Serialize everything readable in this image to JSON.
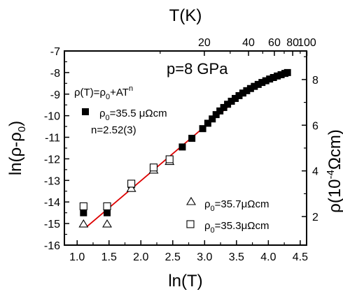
{
  "chart_data": {
    "type": "scatter",
    "title": "",
    "xlabel": "ln(T)",
    "ylabel_left": "ln(ρ-ρ0)",
    "ylabel_right": "ρ(10^-4 Ωcm)",
    "xlabel_top": "T(K)",
    "xlim": [
      0.8,
      4.6
    ],
    "ylim": [
      -16,
      -7
    ],
    "x_ticks": [
      "1.0",
      "1.5",
      "2.0",
      "2.5",
      "3.0",
      "3.5",
      "4.0",
      "4.5"
    ],
    "y_ticks": [
      "-7",
      "-8",
      "-9",
      "-10",
      "-11",
      "-12",
      "-13",
      "-14",
      "-15",
      "-16"
    ],
    "top_ticks": [
      "20",
      "40",
      "60",
      "80",
      "100"
    ],
    "top_tick_values": [
      20,
      40,
      60,
      80,
      100
    ],
    "right_ticks": [
      "2",
      "4",
      "6",
      "8"
    ],
    "right_tick_values": [
      2,
      4,
      6,
      8
    ],
    "right_ylim": [
      0.75,
      9.25
    ],
    "annotations": {
      "pressure": "p=8 GPa",
      "formula": "ρ(T)=ρ0+AT^n",
      "rho0_main": "ρ0=35.5 μΩcm",
      "n_value": "n=2.52(3)",
      "rho0_triangle": "ρ0=35.7μΩcm",
      "rho0_square": "ρ0=35.3μΩcm"
    },
    "series": [
      {
        "name": "ρ0=35.5 μΩcm",
        "marker": "filled-square",
        "color": "#000000",
        "x": [
          1.1,
          1.47,
          1.85,
          2.2,
          2.45,
          2.65,
          2.8,
          2.97,
          3.05,
          3.12,
          3.18,
          3.24,
          3.3,
          3.36,
          3.42,
          3.48,
          3.54,
          3.6,
          3.66,
          3.72,
          3.78,
          3.84,
          3.9,
          3.96,
          4.02,
          4.08,
          4.14,
          4.2,
          4.26,
          4.3
        ],
        "y": [
          -14.5,
          -14.5,
          -13.2,
          -12.45,
          -12.05,
          -11.45,
          -11.05,
          -10.6,
          -10.35,
          -10.15,
          -9.95,
          -9.78,
          -9.62,
          -9.47,
          -9.33,
          -9.2,
          -9.07,
          -8.95,
          -8.84,
          -8.74,
          -8.64,
          -8.55,
          -8.46,
          -8.38,
          -8.3,
          -8.23,
          -8.16,
          -8.1,
          -8.04,
          -8.0
        ]
      },
      {
        "name": "ρ0=35.7μΩcm",
        "marker": "open-triangle",
        "color": "#000000",
        "x": [
          1.1,
          1.47,
          1.85,
          2.2,
          2.45
        ],
        "y": [
          -15.0,
          -15.0,
          -13.35,
          -12.5,
          -12.1
        ]
      },
      {
        "name": "ρ0=35.3μΩcm",
        "marker": "open-square",
        "color": "#000000",
        "x": [
          1.1,
          1.47,
          1.85,
          2.2,
          2.45
        ],
        "y": [
          -14.2,
          -14.2,
          -13.15,
          -12.4,
          -12.02
        ]
      }
    ],
    "fit_line": {
      "color": "#dd0000",
      "x": [
        1.15,
        3.7
      ],
      "y": [
        -15.15,
        -8.75
      ]
    }
  }
}
